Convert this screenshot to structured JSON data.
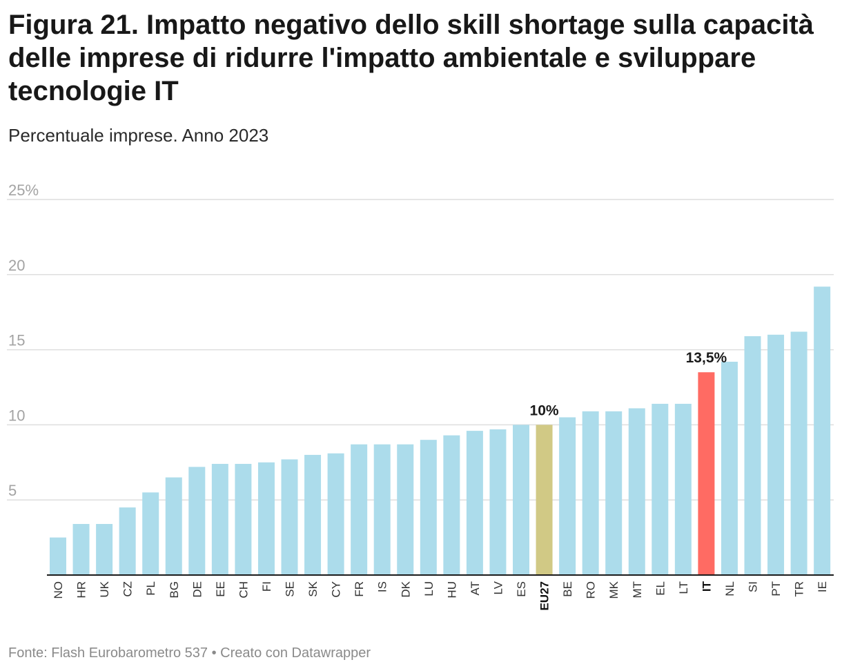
{
  "header": {
    "title": "Figura 21. Impatto negativo dello skill shortage sulla capacità delle imprese di ridurre l'impatto ambientale e sviluppare tecnologie IT",
    "subtitle": "Percentuale imprese. Anno 2023"
  },
  "footer": {
    "source": "Fonte: Flash Eurobarometro 537 • Creato con Datawrapper"
  },
  "colors": {
    "default_bar": "#acdceb",
    "eu27_bar": "#d1c985",
    "it_bar": "#ff6b63",
    "grid": "#dedede",
    "axis": "#1a1a1a"
  },
  "chart_data": {
    "type": "bar",
    "title": "Figura 21. Impatto negativo dello skill shortage sulla capacità delle imprese di ridurre l'impatto ambientale e sviluppare tecnologie IT",
    "subtitle": "Percentuale imprese. Anno 2023",
    "xlabel": "",
    "ylabel": "",
    "ylim": [
      0,
      25
    ],
    "yticks": [
      {
        "value": 5,
        "label": "5"
      },
      {
        "value": 10,
        "label": "10"
      },
      {
        "value": 15,
        "label": "15"
      },
      {
        "value": 20,
        "label": "20"
      },
      {
        "value": 25,
        "label": "25%"
      }
    ],
    "grid": true,
    "categories": [
      "NO",
      "HR",
      "UK",
      "CZ",
      "PL",
      "BG",
      "DE",
      "EE",
      "CH",
      "FI",
      "SE",
      "SK",
      "CY",
      "FR",
      "IS",
      "DK",
      "LU",
      "HU",
      "AT",
      "LV",
      "ES",
      "EU27",
      "BE",
      "RO",
      "MK",
      "MT",
      "EL",
      "LT",
      "IT",
      "NL",
      "SI",
      "PT",
      "TR",
      "IE"
    ],
    "values": [
      2.5,
      3.4,
      3.4,
      4.5,
      5.5,
      6.5,
      7.2,
      7.4,
      7.4,
      7.5,
      7.7,
      8.0,
      8.1,
      8.7,
      8.7,
      8.7,
      9.0,
      9.3,
      9.6,
      9.7,
      10.0,
      10.0,
      10.5,
      10.9,
      10.9,
      11.1,
      11.4,
      11.4,
      13.5,
      14.2,
      15.9,
      16.0,
      16.2,
      19.2
    ],
    "highlights": [
      {
        "category": "EU27",
        "color": "eu27_bar",
        "label": "10%"
      },
      {
        "category": "IT",
        "color": "it_bar",
        "label": "13,5%"
      }
    ]
  }
}
